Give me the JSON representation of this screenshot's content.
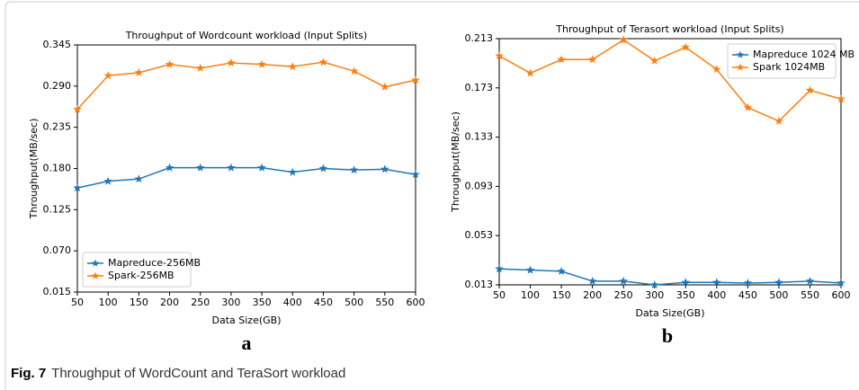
{
  "chart_data": [
    {
      "type": "line",
      "title": "Throughput of Wordcount workload (Input Splits)",
      "x_label": "Data Size(GB)",
      "y_label": "Throughput(MB/sec)",
      "x": [
        50,
        100,
        150,
        200,
        250,
        300,
        350,
        400,
        450,
        500,
        550,
        600
      ],
      "xlim": [
        50,
        600
      ],
      "xticks": [
        50,
        100,
        150,
        200,
        250,
        300,
        350,
        400,
        450,
        500,
        550,
        600
      ],
      "ylim": [
        0.015,
        0.345
      ],
      "yticks": [
        {
          "value": 0.015,
          "label": "0.015"
        },
        {
          "value": 0.07,
          "label": "0.070"
        },
        0.125,
        {
          "value": 0.18,
          "label": "0.180"
        },
        0.235,
        {
          "value": 0.29,
          "label": "0.290"
        },
        0.345
      ],
      "legend": "lower left",
      "series": [
        {
          "name": "Mapreduce-256MB",
          "color": "#1f77b4",
          "values": [
            0.154,
            0.163,
            0.166,
            0.181,
            0.181,
            0.181,
            0.181,
            0.175,
            0.18,
            0.178,
            0.179,
            0.172
          ]
        },
        {
          "name": "Spark-256MB",
          "color": "#ff7f0e",
          "values": [
            0.259,
            0.304,
            0.308,
            0.319,
            0.314,
            0.321,
            0.319,
            0.316,
            0.322,
            0.31,
            0.289,
            0.298
          ]
        }
      ]
    },
    {
      "type": "line",
      "title": "Throughput of Terasort workload (Input Splits)",
      "x_label": "Data Size(GB)",
      "y_label": "Throughput(MB/sec)",
      "x": [
        50,
        100,
        150,
        200,
        250,
        300,
        350,
        400,
        450,
        500,
        550,
        600
      ],
      "xlim": [
        50,
        600
      ],
      "xticks": [
        50,
        100,
        150,
        200,
        250,
        300,
        350,
        400,
        450,
        500,
        550,
        600
      ],
      "ylim": [
        0.013,
        0.213
      ],
      "yticks": [
        0.013,
        0.053,
        0.093,
        0.133,
        0.173,
        0.213
      ],
      "legend": "upper right",
      "series": [
        {
          "name": "Mapreduce 1024 MB",
          "color": "#1f77b4",
          "values": [
            0.026,
            0.025,
            0.024,
            0.016,
            0.016,
            0.013,
            0.015,
            0.015,
            0.0145,
            0.015,
            0.016,
            0.0145
          ]
        },
        {
          "name": "Spark 1024MB",
          "color": "#ff7f0e",
          "values": [
            0.199,
            0.185,
            0.196,
            0.196,
            0.212,
            0.195,
            0.206,
            0.188,
            0.157,
            0.146,
            0.171,
            0.164
          ]
        }
      ]
    }
  ],
  "figure": {
    "panel_labels": [
      "a",
      "b"
    ],
    "caption_label": "Fig. 7",
    "caption": "Throughput of WordCount and TeraSort workload"
  }
}
